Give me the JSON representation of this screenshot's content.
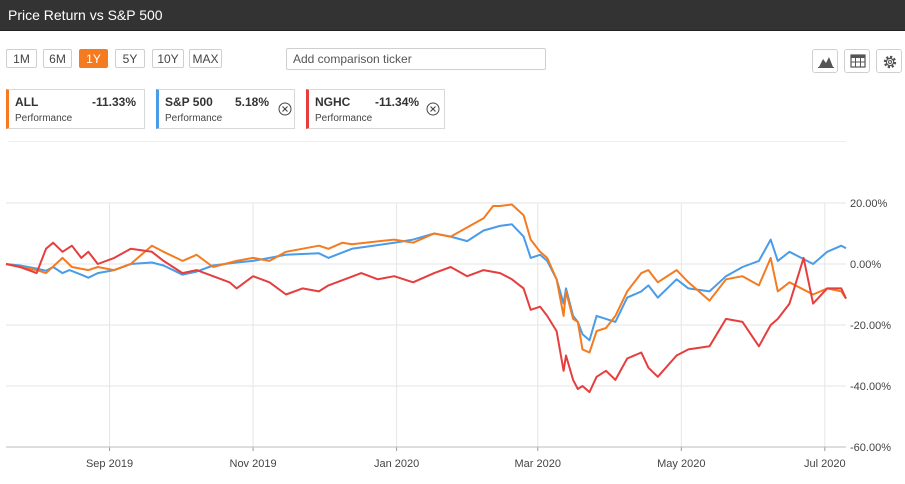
{
  "header": {
    "title": "Price Return vs S&P 500"
  },
  "ranges": [
    {
      "label": "1M",
      "active": false
    },
    {
      "label": "6M",
      "active": false
    },
    {
      "label": "1Y",
      "active": true
    },
    {
      "label": "5Y",
      "active": false
    },
    {
      "label": "10Y",
      "active": false
    },
    {
      "label": "MAX",
      "active": false
    }
  ],
  "comparison": {
    "placeholder": "Add comparison ticker",
    "value": ""
  },
  "tools": [
    "mountain-chart-icon",
    "table-icon",
    "gear-icon"
  ],
  "cards": [
    {
      "symbol": "ALL",
      "value": "-11.33%",
      "sub": "Performance",
      "color": "#f57b20",
      "removable": false
    },
    {
      "symbol": "S&P 500",
      "value": "5.18%",
      "sub": "Performance",
      "color": "#4a9be8",
      "removable": true
    },
    {
      "symbol": "NGHC",
      "value": "-11.34%",
      "sub": "Performance",
      "color": "#e53e3e",
      "removable": true
    }
  ],
  "chart_data": {
    "type": "line",
    "title": "",
    "xlabel": "",
    "ylabel": "",
    "ylim": [
      -60,
      20
    ],
    "y_ticks": [
      20,
      0,
      -20,
      -40,
      -60
    ],
    "y_tick_labels": [
      "20.00%",
      "0.00%",
      "-20.00%",
      "-40.00%",
      "-60.00%"
    ],
    "x_range": [
      "2019-07-19",
      "2020-07-10"
    ],
    "x_ticks": [
      {
        "date": "2019-09-01",
        "label": "Sep 2019"
      },
      {
        "date": "2019-11-01",
        "label": "Nov 2019"
      },
      {
        "date": "2020-01-01",
        "label": "Jan 2020"
      },
      {
        "date": "2020-03-01",
        "label": "Mar 2020"
      },
      {
        "date": "2020-05-01",
        "label": "May 2020"
      },
      {
        "date": "2020-07-01",
        "label": "Jul 2020"
      }
    ],
    "grid": true,
    "legend": "top-left",
    "series": [
      {
        "name": "S&P 500",
        "color": "#4a9be8",
        "points": [
          [
            "2019-07-19",
            0
          ],
          [
            "2019-07-25",
            -0.5
          ],
          [
            "2019-08-01",
            -1.5
          ],
          [
            "2019-08-05",
            -2.2
          ],
          [
            "2019-08-08",
            -1
          ],
          [
            "2019-08-12",
            -3
          ],
          [
            "2019-08-15",
            -2
          ],
          [
            "2019-08-20",
            -3.5
          ],
          [
            "2019-08-23",
            -4.5
          ],
          [
            "2019-08-27",
            -3
          ],
          [
            "2019-09-03",
            -2
          ],
          [
            "2019-09-10",
            0
          ],
          [
            "2019-09-19",
            0.5
          ],
          [
            "2019-09-24",
            -0.5
          ],
          [
            "2019-10-02",
            -3.5
          ],
          [
            "2019-10-08",
            -2.5
          ],
          [
            "2019-10-15",
            -0.5
          ],
          [
            "2019-10-25",
            0.5
          ],
          [
            "2019-11-01",
            1
          ],
          [
            "2019-11-15",
            3
          ],
          [
            "2019-11-29",
            3.5
          ],
          [
            "2019-12-03",
            2
          ],
          [
            "2019-12-13",
            5
          ],
          [
            "2019-12-31",
            7
          ],
          [
            "2020-01-08",
            8
          ],
          [
            "2020-01-17",
            10
          ],
          [
            "2020-01-24",
            9
          ],
          [
            "2020-01-31",
            7.5
          ],
          [
            "2020-02-07",
            11
          ],
          [
            "2020-02-14",
            12.5
          ],
          [
            "2020-02-19",
            13
          ],
          [
            "2020-02-24",
            9
          ],
          [
            "2020-02-27",
            2
          ],
          [
            "2020-03-02",
            3
          ],
          [
            "2020-03-05",
            1
          ],
          [
            "2020-03-09",
            -5
          ],
          [
            "2020-03-12",
            -13
          ],
          [
            "2020-03-13",
            -8
          ],
          [
            "2020-03-16",
            -17
          ],
          [
            "2020-03-18",
            -19
          ],
          [
            "2020-03-20",
            -23
          ],
          [
            "2020-03-23",
            -25
          ],
          [
            "2020-03-26",
            -17
          ],
          [
            "2020-03-30",
            -18
          ],
          [
            "2020-04-03",
            -19
          ],
          [
            "2020-04-08",
            -11
          ],
          [
            "2020-04-14",
            -9
          ],
          [
            "2020-04-17",
            -7
          ],
          [
            "2020-04-21",
            -11
          ],
          [
            "2020-04-29",
            -5
          ],
          [
            "2020-05-04",
            -8
          ],
          [
            "2020-05-13",
            -9
          ],
          [
            "2020-05-20",
            -4
          ],
          [
            "2020-05-27",
            -1
          ],
          [
            "2020-06-03",
            1
          ],
          [
            "2020-06-08",
            8
          ],
          [
            "2020-06-11",
            1
          ],
          [
            "2020-06-16",
            4
          ],
          [
            "2020-06-26",
            0
          ],
          [
            "2020-07-02",
            4
          ],
          [
            "2020-07-08",
            6
          ],
          [
            "2020-07-10",
            5.18
          ]
        ]
      },
      {
        "name": "ALL",
        "color": "#f57b20",
        "points": [
          [
            "2019-07-19",
            0
          ],
          [
            "2019-07-25",
            -1
          ],
          [
            "2019-08-01",
            -2
          ],
          [
            "2019-08-05",
            -3
          ],
          [
            "2019-08-12",
            2
          ],
          [
            "2019-08-16",
            -1
          ],
          [
            "2019-08-23",
            -2
          ],
          [
            "2019-08-27",
            -1
          ],
          [
            "2019-09-03",
            -2
          ],
          [
            "2019-09-10",
            0
          ],
          [
            "2019-09-19",
            6
          ],
          [
            "2019-09-24",
            4
          ],
          [
            "2019-10-02",
            1
          ],
          [
            "2019-10-08",
            3
          ],
          [
            "2019-10-15",
            -1
          ],
          [
            "2019-10-25",
            1
          ],
          [
            "2019-11-01",
            2
          ],
          [
            "2019-11-08",
            1
          ],
          [
            "2019-11-15",
            4
          ],
          [
            "2019-11-29",
            6
          ],
          [
            "2019-12-03",
            5
          ],
          [
            "2019-12-09",
            7
          ],
          [
            "2019-12-13",
            6.5
          ],
          [
            "2019-12-31",
            8
          ],
          [
            "2020-01-08",
            7
          ],
          [
            "2020-01-17",
            10
          ],
          [
            "2020-01-24",
            9
          ],
          [
            "2020-01-31",
            12
          ],
          [
            "2020-02-07",
            15
          ],
          [
            "2020-02-11",
            19
          ],
          [
            "2020-02-14",
            19
          ],
          [
            "2020-02-19",
            19.5
          ],
          [
            "2020-02-24",
            16
          ],
          [
            "2020-02-27",
            8
          ],
          [
            "2020-03-02",
            4
          ],
          [
            "2020-03-05",
            2
          ],
          [
            "2020-03-09",
            -5
          ],
          [
            "2020-03-12",
            -17
          ],
          [
            "2020-03-13",
            -9
          ],
          [
            "2020-03-16",
            -18
          ],
          [
            "2020-03-18",
            -19
          ],
          [
            "2020-03-20",
            -28
          ],
          [
            "2020-03-23",
            -29
          ],
          [
            "2020-03-26",
            -22
          ],
          [
            "2020-03-30",
            -21
          ],
          [
            "2020-04-03",
            -17
          ],
          [
            "2020-04-08",
            -9
          ],
          [
            "2020-04-14",
            -3
          ],
          [
            "2020-04-17",
            -2
          ],
          [
            "2020-04-21",
            -6
          ],
          [
            "2020-04-29",
            -2
          ],
          [
            "2020-05-04",
            -6
          ],
          [
            "2020-05-13",
            -12
          ],
          [
            "2020-05-20",
            -5
          ],
          [
            "2020-05-27",
            -4
          ],
          [
            "2020-06-03",
            -7
          ],
          [
            "2020-06-08",
            2
          ],
          [
            "2020-06-11",
            -9
          ],
          [
            "2020-06-16",
            -6
          ],
          [
            "2020-06-26",
            -10
          ],
          [
            "2020-07-02",
            -8
          ],
          [
            "2020-07-08",
            -9
          ],
          [
            "2020-07-10",
            -11.33
          ]
        ]
      },
      {
        "name": "NGHC",
        "color": "#e53e3e",
        "points": [
          [
            "2019-07-19",
            0
          ],
          [
            "2019-07-25",
            -1
          ],
          [
            "2019-08-01",
            -3
          ],
          [
            "2019-08-05",
            5
          ],
          [
            "2019-08-08",
            7
          ],
          [
            "2019-08-12",
            4
          ],
          [
            "2019-08-16",
            6
          ],
          [
            "2019-08-20",
            2
          ],
          [
            "2019-08-23",
            4
          ],
          [
            "2019-08-27",
            0
          ],
          [
            "2019-09-03",
            2
          ],
          [
            "2019-09-10",
            5
          ],
          [
            "2019-09-19",
            4
          ],
          [
            "2019-09-24",
            1
          ],
          [
            "2019-10-02",
            -3
          ],
          [
            "2019-10-08",
            -2
          ],
          [
            "2019-10-15",
            -4
          ],
          [
            "2019-10-22",
            -6
          ],
          [
            "2019-10-25",
            -8
          ],
          [
            "2019-11-01",
            -4
          ],
          [
            "2019-11-08",
            -6
          ],
          [
            "2019-11-15",
            -10
          ],
          [
            "2019-11-22",
            -8
          ],
          [
            "2019-11-29",
            -9
          ],
          [
            "2019-12-03",
            -7
          ],
          [
            "2019-12-10",
            -5
          ],
          [
            "2019-12-17",
            -3
          ],
          [
            "2019-12-24",
            -5
          ],
          [
            "2019-12-31",
            -4
          ],
          [
            "2020-01-08",
            -6
          ],
          [
            "2020-01-17",
            -3
          ],
          [
            "2020-01-24",
            -1
          ],
          [
            "2020-01-31",
            -4
          ],
          [
            "2020-02-07",
            -2
          ],
          [
            "2020-02-14",
            -3
          ],
          [
            "2020-02-19",
            -5
          ],
          [
            "2020-02-24",
            -8
          ],
          [
            "2020-02-27",
            -15
          ],
          [
            "2020-03-02",
            -14
          ],
          [
            "2020-03-05",
            -17
          ],
          [
            "2020-03-09",
            -22
          ],
          [
            "2020-03-12",
            -35
          ],
          [
            "2020-03-13",
            -30
          ],
          [
            "2020-03-16",
            -38
          ],
          [
            "2020-03-18",
            -41
          ],
          [
            "2020-03-20",
            -40
          ],
          [
            "2020-03-23",
            -42
          ],
          [
            "2020-03-26",
            -37
          ],
          [
            "2020-03-30",
            -35
          ],
          [
            "2020-04-03",
            -38
          ],
          [
            "2020-04-08",
            -31
          ],
          [
            "2020-04-14",
            -29
          ],
          [
            "2020-04-17",
            -34
          ],
          [
            "2020-04-21",
            -37
          ],
          [
            "2020-04-29",
            -30
          ],
          [
            "2020-05-04",
            -28
          ],
          [
            "2020-05-13",
            -27
          ],
          [
            "2020-05-20",
            -18
          ],
          [
            "2020-05-27",
            -19
          ],
          [
            "2020-06-03",
            -27
          ],
          [
            "2020-06-08",
            -20
          ],
          [
            "2020-06-11",
            -18
          ],
          [
            "2020-06-16",
            -13
          ],
          [
            "2020-06-22",
            2
          ],
          [
            "2020-06-26",
            -13
          ],
          [
            "2020-07-02",
            -8
          ],
          [
            "2020-07-08",
            -8
          ],
          [
            "2020-07-10",
            -11.34
          ]
        ]
      }
    ]
  }
}
